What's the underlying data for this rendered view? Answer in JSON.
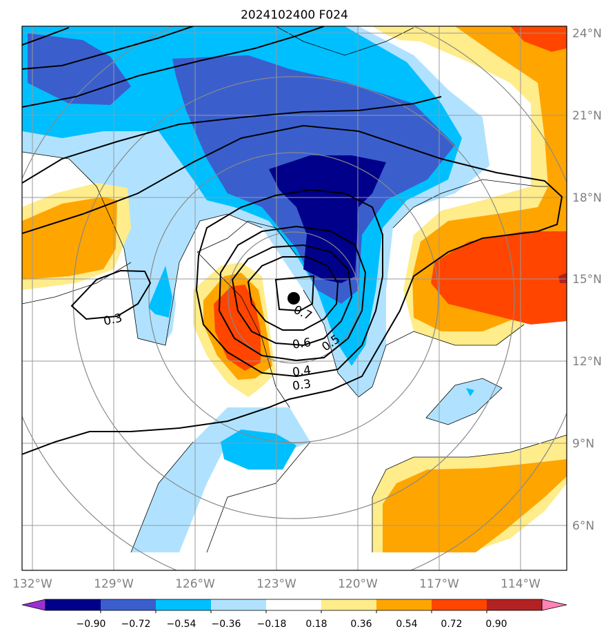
{
  "title": "2024102400 F024",
  "longitude_labels": [
    "132°W",
    "129°W",
    "126°W",
    "123°W",
    "120°W",
    "117°W",
    "114°W"
  ],
  "latitude_labels": [
    "6°N",
    "9°N",
    "12°N",
    "15°N",
    "18°N",
    "21°N",
    "24°N"
  ],
  "contour_labels": [
    "0.3",
    "0.7",
    "0.6",
    "0.5",
    "0.4",
    "0.3"
  ],
  "colorbar": {
    "tick_labels": [
      "−0.90",
      "−0.72",
      "−0.54",
      "−0.36",
      "−0.18",
      "0.18",
      "0.36",
      "0.54",
      "0.72",
      "0.90"
    ],
    "colors": [
      "#9b30d0",
      "#00008b",
      "#3a5fcd",
      "#00bfff",
      "#b0e2ff",
      "#ffffff",
      "#ffec8b",
      "#ffa500",
      "#ff4500",
      "#b22222",
      "#ff83b4"
    ]
  },
  "storm_center": {
    "lon": "122.3°W",
    "lat": "14.4°N"
  },
  "colors": {
    "grid": "#999999",
    "range_rings": "#888888",
    "axis_labels": "#808080"
  }
}
